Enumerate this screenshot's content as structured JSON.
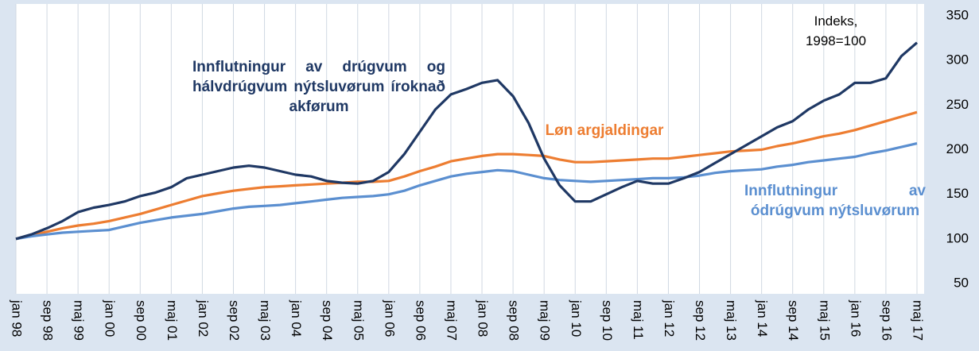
{
  "chart_data": {
    "type": "line",
    "annotation": "Indeks, 1998=100",
    "categories": [
      "jan 98",
      null,
      "sep 98",
      null,
      "maj 99",
      null,
      "jan 00",
      null,
      "sep 00",
      null,
      "maj 01",
      null,
      "jan 02",
      null,
      "sep 02",
      null,
      "maj 03",
      null,
      "jan 04",
      null,
      "sep 04",
      null,
      "maj 05",
      null,
      "jan 06",
      null,
      "sep 06",
      null,
      "maj 07",
      null,
      "jan 08",
      null,
      "sep 08",
      null,
      "maj 09",
      null,
      "jan 10",
      null,
      "sep 10",
      null,
      "maj 11",
      null,
      "jan 12",
      null,
      "sep 12",
      null,
      "maj 13",
      null,
      "jan 14",
      null,
      "sep 14",
      null,
      "maj 15",
      null,
      "jan 16",
      null,
      "sep 16",
      null,
      "maj 17"
    ],
    "series": [
      {
        "name": "Innflutningur av drúgvum og hálvdrúgvum nýtsluvørum íroknað akførum",
        "color": "#1f3864",
        "values": [
          100,
          105,
          112,
          120,
          130,
          135,
          138,
          142,
          148,
          152,
          158,
          168,
          172,
          176,
          180,
          182,
          180,
          176,
          172,
          170,
          165,
          163,
          162,
          165,
          175,
          195,
          220,
          245,
          262,
          268,
          275,
          278,
          260,
          230,
          190,
          160,
          142,
          142,
          150,
          158,
          165,
          162,
          162,
          168,
          175,
          185,
          195,
          205,
          215,
          225,
          232,
          245,
          255,
          262,
          275,
          275,
          280,
          305,
          320
        ]
      },
      {
        "name": "Løn argjaldingar",
        "color": "#ed7d31",
        "values": [
          100,
          104,
          108,
          112,
          115,
          117,
          120,
          124,
          128,
          133,
          138,
          143,
          148,
          151,
          154,
          156,
          158,
          159,
          160,
          161,
          162,
          163,
          164,
          164,
          165,
          170,
          176,
          181,
          187,
          190,
          193,
          195,
          195,
          194,
          193,
          189,
          186,
          186,
          187,
          188,
          189,
          190,
          190,
          192,
          194,
          196,
          198,
          199,
          200,
          204,
          207,
          211,
          215,
          218,
          222,
          227,
          232,
          237,
          242
        ]
      },
      {
        "name": "Innflutningur av ódrúgvum nýtsluvørum",
        "color": "#5b8fd0",
        "values": [
          100,
          103,
          105,
          107,
          108,
          109,
          110,
          114,
          118,
          121,
          124,
          126,
          128,
          131,
          134,
          136,
          137,
          138,
          140,
          142,
          144,
          146,
          147,
          148,
          150,
          154,
          160,
          165,
          170,
          173,
          175,
          177,
          176,
          172,
          168,
          166,
          165,
          164,
          165,
          166,
          167,
          168,
          168,
          169,
          171,
          174,
          176,
          177,
          178,
          181,
          183,
          186,
          188,
          190,
          192,
          196,
          199,
          203,
          207
        ]
      }
    ],
    "ylim": [
      50,
      350
    ],
    "yticks": [
      50,
      100,
      150,
      200,
      250,
      300,
      350
    ],
    "grid": true
  }
}
